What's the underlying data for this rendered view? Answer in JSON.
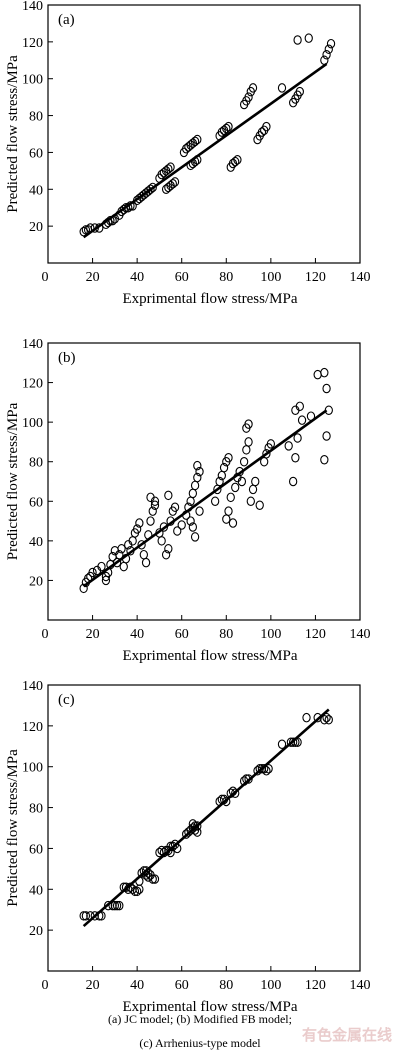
{
  "chart_data": [
    {
      "type": "scatter",
      "panel_label": "(a)",
      "xlabel": "Exprimental flow stress/MPa",
      "ylabel": "Predicted flow stress/MPa",
      "xlim": [
        0,
        140
      ],
      "ylim": [
        0,
        140
      ],
      "x_ticks": [
        0,
        20,
        40,
        60,
        80,
        100,
        120,
        140
      ],
      "y_ticks": [
        20,
        40,
        60,
        80,
        100,
        120,
        140
      ],
      "fit_line": [
        [
          16,
          14
        ],
        [
          125,
          108
        ]
      ],
      "points": [
        [
          16,
          17
        ],
        [
          17,
          18
        ],
        [
          18,
          18
        ],
        [
          19,
          19
        ],
        [
          21,
          19
        ],
        [
          23,
          19
        ],
        [
          26,
          21
        ],
        [
          27,
          22
        ],
        [
          28,
          23
        ],
        [
          29,
          23
        ],
        [
          30,
          24
        ],
        [
          32,
          26
        ],
        [
          33,
          28
        ],
        [
          34,
          29
        ],
        [
          35,
          30
        ],
        [
          36,
          30
        ],
        [
          37,
          31
        ],
        [
          38,
          31
        ],
        [
          40,
          34
        ],
        [
          41,
          35
        ],
        [
          42,
          36
        ],
        [
          43,
          37
        ],
        [
          44,
          38
        ],
        [
          45,
          39
        ],
        [
          46,
          40
        ],
        [
          47,
          41
        ],
        [
          50,
          46
        ],
        [
          51,
          48
        ],
        [
          52,
          49
        ],
        [
          53,
          50
        ],
        [
          54,
          51
        ],
        [
          55,
          52
        ],
        [
          53,
          40
        ],
        [
          54,
          41
        ],
        [
          55,
          42
        ],
        [
          56,
          43
        ],
        [
          57,
          44
        ],
        [
          61,
          60
        ],
        [
          62,
          62
        ],
        [
          63,
          63
        ],
        [
          64,
          64
        ],
        [
          65,
          65
        ],
        [
          66,
          66
        ],
        [
          67,
          67
        ],
        [
          64,
          53
        ],
        [
          65,
          54
        ],
        [
          66,
          55
        ],
        [
          67,
          56
        ],
        [
          77,
          69
        ],
        [
          78,
          71
        ],
        [
          79,
          72
        ],
        [
          80,
          73
        ],
        [
          81,
          74
        ],
        [
          82,
          52
        ],
        [
          83,
          54
        ],
        [
          84,
          55
        ],
        [
          85,
          56
        ],
        [
          88,
          86
        ],
        [
          89,
          88
        ],
        [
          90,
          90
        ],
        [
          91,
          93
        ],
        [
          92,
          95
        ],
        [
          94,
          67
        ],
        [
          95,
          69
        ],
        [
          96,
          71
        ],
        [
          97,
          72
        ],
        [
          98,
          74
        ],
        [
          105,
          95
        ],
        [
          110,
          87
        ],
        [
          111,
          89
        ],
        [
          112,
          91
        ],
        [
          113,
          93
        ],
        [
          112,
          121
        ],
        [
          117,
          122
        ],
        [
          124,
          110
        ],
        [
          125,
          113
        ],
        [
          126,
          116
        ],
        [
          127,
          119
        ]
      ]
    },
    {
      "type": "scatter",
      "panel_label": "(b)",
      "xlabel": "Exprimental flow stress/MPa",
      "ylabel": "Predicted flow stress/MPa",
      "xlim": [
        0,
        140
      ],
      "ylim": [
        0,
        140
      ],
      "x_ticks": [
        0,
        20,
        40,
        60,
        80,
        100,
        120,
        140
      ],
      "y_ticks": [
        20,
        40,
        60,
        80,
        100,
        120,
        140
      ],
      "fit_line": [
        [
          16,
          17
        ],
        [
          125,
          106
        ]
      ],
      "points": [
        [
          16,
          16
        ],
        [
          17,
          19
        ],
        [
          18,
          21
        ],
        [
          19,
          22
        ],
        [
          20,
          24
        ],
        [
          22,
          25
        ],
        [
          24,
          27
        ],
        [
          26,
          22
        ],
        [
          26,
          20
        ],
        [
          27,
          24
        ],
        [
          28,
          28
        ],
        [
          29,
          32
        ],
        [
          30,
          35
        ],
        [
          31,
          29
        ],
        [
          32,
          33
        ],
        [
          33,
          36
        ],
        [
          34,
          27
        ],
        [
          35,
          31
        ],
        [
          36,
          38
        ],
        [
          37,
          35
        ],
        [
          38,
          40
        ],
        [
          39,
          44
        ],
        [
          40,
          46
        ],
        [
          41,
          49
        ],
        [
          42,
          38
        ],
        [
          43,
          33
        ],
        [
          44,
          29
        ],
        [
          45,
          43
        ],
        [
          46,
          50
        ],
        [
          47,
          55
        ],
        [
          48,
          58
        ],
        [
          46,
          62
        ],
        [
          48,
          60
        ],
        [
          50,
          44
        ],
        [
          51,
          40
        ],
        [
          52,
          47
        ],
        [
          53,
          33
        ],
        [
          54,
          36
        ],
        [
          55,
          50
        ],
        [
          56,
          55
        ],
        [
          57,
          57
        ],
        [
          54,
          63
        ],
        [
          58,
          45
        ],
        [
          60,
          48
        ],
        [
          62,
          53
        ],
        [
          63,
          57
        ],
        [
          64,
          60
        ],
        [
          65,
          64
        ],
        [
          66,
          68
        ],
        [
          67,
          72
        ],
        [
          68,
          75
        ],
        [
          67,
          78
        ],
        [
          66,
          42
        ],
        [
          65,
          47
        ],
        [
          64,
          50
        ],
        [
          68,
          55
        ],
        [
          75,
          60
        ],
        [
          76,
          66
        ],
        [
          77,
          70
        ],
        [
          78,
          73
        ],
        [
          79,
          77
        ],
        [
          80,
          80
        ],
        [
          81,
          82
        ],
        [
          80,
          51
        ],
        [
          81,
          55
        ],
        [
          82,
          62
        ],
        [
          83,
          49
        ],
        [
          84,
          67
        ],
        [
          85,
          72
        ],
        [
          86,
          75
        ],
        [
          87,
          70
        ],
        [
          88,
          80
        ],
        [
          89,
          86
        ],
        [
          90,
          90
        ],
        [
          89,
          97
        ],
        [
          90,
          99
        ],
        [
          91,
          60
        ],
        [
          92,
          66
        ],
        [
          93,
          70
        ],
        [
          95,
          58
        ],
        [
          97,
          80
        ],
        [
          98,
          84
        ],
        [
          99,
          87
        ],
        [
          100,
          89
        ],
        [
          108,
          88
        ],
        [
          110,
          70
        ],
        [
          111,
          82
        ],
        [
          112,
          92
        ],
        [
          111,
          106
        ],
        [
          113,
          108
        ],
        [
          114,
          101
        ],
        [
          118,
          103
        ],
        [
          121,
          124
        ],
        [
          124,
          125
        ],
        [
          125,
          117
        ],
        [
          126,
          106
        ],
        [
          125,
          93
        ],
        [
          124,
          81
        ]
      ]
    },
    {
      "type": "scatter",
      "panel_label": "(c)",
      "xlabel": "Exprimental flow stress/MPa",
      "ylabel": "Predicted flow stress/MPa",
      "xlim": [
        0,
        140
      ],
      "ylim": [
        0,
        140
      ],
      "x_ticks": [
        0,
        20,
        40,
        60,
        80,
        100,
        120,
        140
      ],
      "y_ticks": [
        20,
        40,
        60,
        80,
        100,
        120,
        140
      ],
      "fit_line": [
        [
          16,
          22
        ],
        [
          126,
          128
        ]
      ],
      "points": [
        [
          16,
          27
        ],
        [
          17,
          27
        ],
        [
          19,
          27
        ],
        [
          21,
          27
        ],
        [
          23,
          27
        ],
        [
          24,
          27
        ],
        [
          27,
          32
        ],
        [
          29,
          32
        ],
        [
          30,
          32
        ],
        [
          31,
          32
        ],
        [
          32,
          32
        ],
        [
          34,
          41
        ],
        [
          35,
          41
        ],
        [
          36,
          40
        ],
        [
          37,
          41
        ],
        [
          38,
          40
        ],
        [
          39,
          39
        ],
        [
          40,
          39
        ],
        [
          41,
          40
        ],
        [
          41,
          44
        ],
        [
          42,
          48
        ],
        [
          43,
          49
        ],
        [
          44,
          49
        ],
        [
          45,
          48
        ],
        [
          46,
          47
        ],
        [
          47,
          45
        ],
        [
          48,
          45
        ],
        [
          45,
          46
        ],
        [
          44,
          47
        ],
        [
          50,
          58
        ],
        [
          51,
          59
        ],
        [
          52,
          58
        ],
        [
          53,
          59
        ],
        [
          54,
          59
        ],
        [
          55,
          61
        ],
        [
          56,
          61
        ],
        [
          57,
          62
        ],
        [
          58,
          60
        ],
        [
          55,
          58
        ],
        [
          62,
          67
        ],
        [
          63,
          68
        ],
        [
          64,
          69
        ],
        [
          65,
          70
        ],
        [
          66,
          71
        ],
        [
          67,
          71
        ],
        [
          66,
          69
        ],
        [
          67,
          68
        ],
        [
          65,
          72
        ],
        [
          77,
          83
        ],
        [
          78,
          84
        ],
        [
          79,
          84
        ],
        [
          80,
          83
        ],
        [
          82,
          87
        ],
        [
          83,
          88
        ],
        [
          84,
          87
        ],
        [
          88,
          93
        ],
        [
          89,
          94
        ],
        [
          90,
          94
        ],
        [
          94,
          98
        ],
        [
          95,
          99
        ],
        [
          96,
          99
        ],
        [
          97,
          99
        ],
        [
          98,
          98
        ],
        [
          99,
          99
        ],
        [
          105,
          111
        ],
        [
          109,
          112
        ],
        [
          110,
          112
        ],
        [
          111,
          112
        ],
        [
          112,
          112
        ],
        [
          116,
          124
        ],
        [
          121,
          124
        ],
        [
          124,
          123
        ],
        [
          125,
          124
        ],
        [
          126,
          123
        ]
      ]
    }
  ],
  "caption": {
    "line1": "(a)  JC  model;  (b)  Modified  FB  model;",
    "line2": "(c) Arrhenius-type model"
  },
  "watermark": "有色金属在线"
}
